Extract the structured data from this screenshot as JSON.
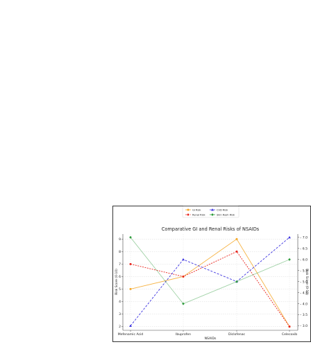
{
  "chart_data": {
    "type": "line",
    "title": "Comparative GI and Renal Risks of NSAIDs",
    "xlabel": "NSAIDs",
    "ylabel": "Risk Score (0-10)",
    "ylabel_right": "Risk Score (0-10)",
    "categories": [
      "Mefenamic Acid",
      "Ibuprofen",
      "Diclofenac",
      "Celecoxib"
    ],
    "ylim": [
      1.7,
      9.4
    ],
    "y_ticks": [
      2,
      3,
      4,
      5,
      6,
      7,
      8,
      9
    ],
    "ylim_right": [
      2.8,
      7.15
    ],
    "y_ticks_right": [
      3.0,
      3.5,
      4.0,
      4.5,
      5.0,
      5.5,
      6.0,
      6.5,
      7.0
    ],
    "y_ticks_right_labels": [
      "3.0",
      "3.5",
      "4.0",
      "4.5",
      "5.0",
      "5.5",
      "6.0",
      "6.5",
      "7.0"
    ],
    "grid": true,
    "legend_position": "top-center",
    "series": [
      {
        "name": "GI Risk",
        "axis": "left",
        "color": "#f5a623",
        "dash": "solid",
        "marker": "circle",
        "values": [
          5,
          6,
          9,
          2
        ]
      },
      {
        "name": "Renal Risk",
        "axis": "left",
        "color": "#e8241c",
        "dash": "dotted",
        "marker": "circle",
        "values": [
          7,
          6,
          8,
          2
        ]
      },
      {
        "name": "CVD Risk",
        "axis": "right",
        "color": "#3b32e0",
        "dash": "dashed",
        "marker": "triangle",
        "values": [
          3,
          6,
          5,
          7
        ]
      },
      {
        "name": "Skin Rash Risk",
        "axis": "right",
        "color": "#2e9b3c",
        "dash": "solid",
        "marker": "diamond",
        "values": [
          7,
          4,
          5,
          6
        ]
      }
    ]
  }
}
